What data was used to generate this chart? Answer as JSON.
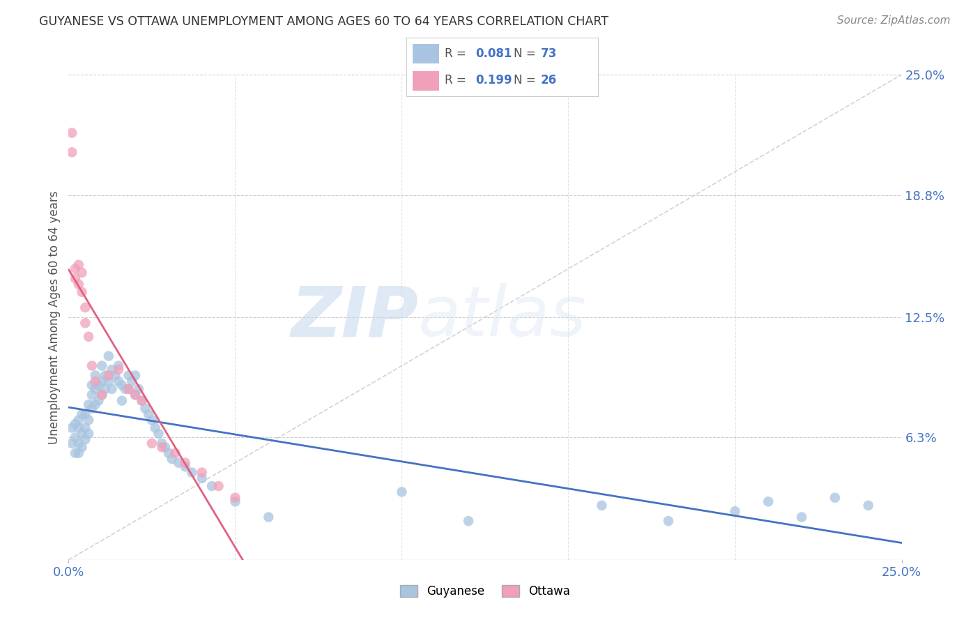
{
  "title": "GUYANESE VS OTTAWA UNEMPLOYMENT AMONG AGES 60 TO 64 YEARS CORRELATION CHART",
  "source": "Source: ZipAtlas.com",
  "ylabel": "Unemployment Among Ages 60 to 64 years",
  "xlim": [
    0.0,
    0.25
  ],
  "ylim": [
    0.0,
    0.25
  ],
  "y_tick_labels_right": [
    "25.0%",
    "18.8%",
    "12.5%",
    "6.3%"
  ],
  "y_tick_values_right": [
    0.25,
    0.188,
    0.125,
    0.063
  ],
  "grid_color": "#cccccc",
  "background_color": "#ffffff",
  "guyanese_color": "#a8c4e0",
  "ottawa_color": "#f0a0b8",
  "guyanese_line_color": "#4472c4",
  "ottawa_line_color": "#e06080",
  "r_guyanese": "0.081",
  "n_guyanese": "73",
  "r_ottawa": "0.199",
  "n_ottawa": "26",
  "watermark_zip": "ZIP",
  "watermark_atlas": "atlas",
  "guyanese_x": [
    0.001,
    0.001,
    0.002,
    0.002,
    0.002,
    0.003,
    0.003,
    0.003,
    0.003,
    0.004,
    0.004,
    0.004,
    0.005,
    0.005,
    0.005,
    0.006,
    0.006,
    0.006,
    0.007,
    0.007,
    0.007,
    0.008,
    0.008,
    0.008,
    0.009,
    0.009,
    0.01,
    0.01,
    0.01,
    0.011,
    0.011,
    0.012,
    0.012,
    0.013,
    0.013,
    0.014,
    0.015,
    0.015,
    0.016,
    0.016,
    0.017,
    0.018,
    0.018,
    0.019,
    0.02,
    0.02,
    0.021,
    0.022,
    0.023,
    0.024,
    0.025,
    0.026,
    0.027,
    0.028,
    0.029,
    0.03,
    0.031,
    0.033,
    0.035,
    0.037,
    0.04,
    0.043,
    0.05,
    0.06,
    0.1,
    0.12,
    0.16,
    0.18,
    0.2,
    0.21,
    0.22,
    0.23,
    0.24
  ],
  "guyanese_y": [
    0.06,
    0.068,
    0.063,
    0.07,
    0.055,
    0.068,
    0.072,
    0.06,
    0.055,
    0.065,
    0.075,
    0.058,
    0.068,
    0.075,
    0.062,
    0.08,
    0.072,
    0.065,
    0.085,
    0.09,
    0.078,
    0.088,
    0.095,
    0.08,
    0.09,
    0.082,
    0.1,
    0.092,
    0.085,
    0.095,
    0.088,
    0.105,
    0.092,
    0.098,
    0.088,
    0.095,
    0.1,
    0.092,
    0.09,
    0.082,
    0.088,
    0.095,
    0.088,
    0.092,
    0.095,
    0.085,
    0.088,
    0.082,
    0.078,
    0.075,
    0.072,
    0.068,
    0.065,
    0.06,
    0.058,
    0.055,
    0.052,
    0.05,
    0.048,
    0.045,
    0.042,
    0.038,
    0.03,
    0.022,
    0.035,
    0.02,
    0.028,
    0.02,
    0.025,
    0.03,
    0.022,
    0.032,
    0.028
  ],
  "ottawa_x": [
    0.001,
    0.001,
    0.002,
    0.002,
    0.003,
    0.003,
    0.004,
    0.004,
    0.005,
    0.005,
    0.006,
    0.007,
    0.008,
    0.01,
    0.012,
    0.015,
    0.018,
    0.02,
    0.022,
    0.025,
    0.028,
    0.032,
    0.035,
    0.04,
    0.045,
    0.05
  ],
  "ottawa_y": [
    0.22,
    0.21,
    0.15,
    0.145,
    0.152,
    0.142,
    0.148,
    0.138,
    0.13,
    0.122,
    0.115,
    0.1,
    0.092,
    0.085,
    0.095,
    0.098,
    0.088,
    0.085,
    0.082,
    0.06,
    0.058,
    0.055,
    0.05,
    0.045,
    0.038,
    0.032
  ]
}
